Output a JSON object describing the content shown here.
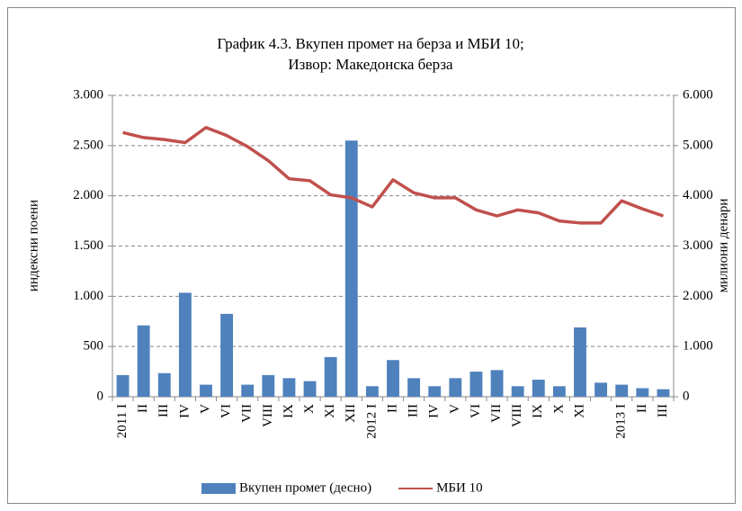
{
  "chart_data": {
    "type": "bar-line",
    "title": [
      "График 4.3. Вкупен промет на берза и МБИ 10;",
      "Извор: Македонска берза"
    ],
    "ylabel": "индексни поени",
    "y2label": "милиони денари",
    "categories": [
      "2011 I",
      "II",
      "III",
      "IV",
      "V",
      "VI",
      "VII",
      "VIII",
      "IX",
      "X",
      "XI",
      "XII",
      "2012 I",
      "II",
      "III",
      "IV",
      "V",
      "VI",
      "VII",
      "VIII",
      "IX",
      "X",
      "XI",
      null,
      "2013 I",
      "II",
      "III"
    ],
    "series": [
      {
        "name": "Вкупен промет (десно)",
        "type": "bar",
        "axis": "y2",
        "color": "#4f81bd",
        "values": [
          430,
          1420,
          470,
          2070,
          240,
          1650,
          240,
          430,
          370,
          310,
          790,
          5100,
          210,
          730,
          370,
          210,
          370,
          500,
          530,
          210,
          340,
          210,
          1380,
          280,
          240,
          170,
          150
        ]
      },
      {
        "name": "МБИ 10",
        "type": "line",
        "color": "#c0504d",
        "values": [
          2630,
          2580,
          2560,
          2530,
          2680,
          2600,
          2490,
          2350,
          2170,
          2150,
          2010,
          1980,
          1890,
          2160,
          2030,
          1980,
          1980,
          1860,
          1800,
          1860,
          1830,
          1750,
          1730,
          1730,
          1950,
          1870,
          1800
        ]
      }
    ],
    "ylim": [
      0,
      3000
    ],
    "yticks": [
      0,
      500,
      {
        "value": 1000,
        "label": "1.000"
      },
      {
        "value": 1500,
        "label": "1.500"
      },
      {
        "value": 2000,
        "label": "2.000"
      },
      {
        "value": 2500,
        "label": "2.500"
      },
      {
        "value": 3000,
        "label": "3.000"
      }
    ],
    "y2lim": [
      0,
      6000
    ],
    "y2ticks": [
      0,
      {
        "value": 1000,
        "label": "1.000"
      },
      {
        "value": 2000,
        "label": "2.000"
      },
      {
        "value": 3000,
        "label": "3.000"
      },
      {
        "value": 4000,
        "label": "4.000"
      },
      {
        "value": 5000,
        "label": "5.000"
      },
      {
        "value": 6000,
        "label": "6.000"
      }
    ],
    "grid": true,
    "legend": "bottom"
  }
}
